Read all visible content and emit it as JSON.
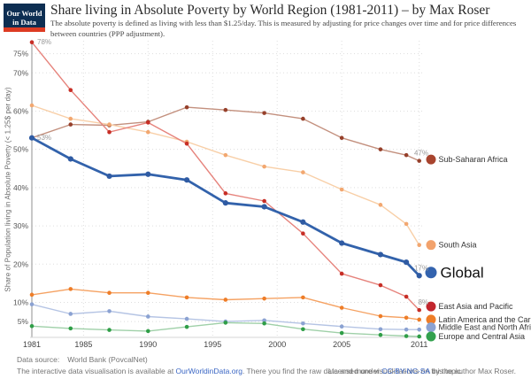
{
  "header": {
    "logo": {
      "line1": "Our World",
      "line2": "in Data",
      "bg_color": "#0d2e52",
      "stripe_color": "#dd3b23"
    },
    "title": "Share living in Absolute Poverty by World Region (1981-2011) – by Max Roser",
    "subtitle": "The absolute poverty is defined as living with less than $1.25/day. This is measured by adjusting for price changes over time and for price differences between countries (PPP adjustment)."
  },
  "chart_data": {
    "type": "line",
    "title": "Share living in Absolute Poverty by World Region (1981-2011) – by Max Roser",
    "ylabel": "Share of Population living in Absolute Poverty (< 1.25$ per day)",
    "xlabel": "",
    "x": [
      1981,
      1984,
      1987,
      1990,
      1993,
      1996,
      1999,
      2002,
      2005,
      2008,
      2010,
      2011
    ],
    "x_ticks": [
      1981,
      1985,
      1990,
      1995,
      2000,
      2005,
      2011
    ],
    "y_ticks": [
      5,
      10,
      20,
      30,
      40,
      50,
      60,
      70,
      75
    ],
    "y_tick_suffix": "%",
    "xlim": [
      1981,
      2011
    ],
    "ylim": [
      0,
      78
    ],
    "grid": "dotted",
    "legend_position": "right-at-line-ends",
    "series": [
      {
        "name": "Sub-Saharan Africa",
        "line_color": "#c3907e",
        "dot_color": "#96402b",
        "legend_color": "#a8442e",
        "bold": false,
        "values": [
          53,
          56.5,
          56.3,
          57.2,
          61,
          60.3,
          59.5,
          58,
          53,
          50,
          48.5,
          47
        ]
      },
      {
        "name": "South Asia",
        "line_color": "#f8cfa7",
        "dot_color": "#f2a770",
        "legend_color": "#f2a26c",
        "bold": false,
        "values": [
          61.5,
          58,
          56.5,
          54.5,
          52,
          48.5,
          45.5,
          44,
          39.5,
          35.5,
          30.5,
          25
        ]
      },
      {
        "name": "East Asia and Pacific",
        "line_color": "#e6837c",
        "dot_color": "#c72e26",
        "legend_color": "#c2262e",
        "bold": false,
        "values": [
          78,
          65.5,
          54.5,
          57,
          51.5,
          38.5,
          36.5,
          28,
          17.5,
          14.5,
          11.5,
          8
        ]
      },
      {
        "name": "Latin America and the Caribbean",
        "line_color": "#f5a263",
        "dot_color": "#ee7d28",
        "legend_color": "#ee7d28",
        "bold": false,
        "values": [
          12,
          13.5,
          12.5,
          12.5,
          11.3,
          10.7,
          11,
          11.3,
          8.6,
          6.4,
          6,
          5.5
        ]
      },
      {
        "name": "Middle East and North Africa",
        "line_color": "#b5c4e4",
        "dot_color": "#8ba2d2",
        "legend_color": "#8ba2d2",
        "bold": false,
        "values": [
          9.5,
          7,
          7.7,
          6.3,
          5.7,
          5,
          5.3,
          4.5,
          3.7,
          3,
          2.9,
          2.9
        ]
      },
      {
        "name": "Europe and Central Asia",
        "line_color": "#9fd0a8",
        "dot_color": "#2f9e47",
        "legend_color": "#33a14e",
        "bold": false,
        "values": [
          3.8,
          3.2,
          2.8,
          2.5,
          3.6,
          4.7,
          4.5,
          3,
          2,
          1.5,
          1.2,
          1.1
        ]
      },
      {
        "name": "Global",
        "line_color": "#3262ab",
        "dot_color": "#2f5ba3",
        "legend_color": "#3363ae",
        "bold": true,
        "values": [
          53,
          47.5,
          43,
          43.5,
          42,
          36,
          35,
          31,
          25.5,
          22.5,
          20.5,
          17
        ]
      }
    ],
    "value_labels": [
      {
        "series": "East Asia and Pacific",
        "year": 1981,
        "text": "78%"
      },
      {
        "series": "Global",
        "year": 1981,
        "text": "53%"
      },
      {
        "series": "Sub-Saharan Africa",
        "year": 2011,
        "text": "47%"
      },
      {
        "series": "Global",
        "year": 2011,
        "text": "17%"
      },
      {
        "series": "East Asia and Pacific",
        "year": 2011,
        "text": "8%"
      }
    ],
    "annotation_color": "#999999",
    "grid_color": "#dedede",
    "axis_color": "#b9b9b9"
  },
  "footer": {
    "datasource_label": "Data source:",
    "datasource_value": "World Bank (PovcalNet)",
    "line2_before": "The interactive data visualisation is available at ",
    "line2_link": "OurWorldinData.org",
    "line2_after": ". There you find the raw data and more visualisations on this topic.",
    "license_before": "Licensed under ",
    "license_link": "CC-BY-NC-SA",
    "license_after": " by the author Max Roser.",
    "link_color": "#3a66c4"
  }
}
